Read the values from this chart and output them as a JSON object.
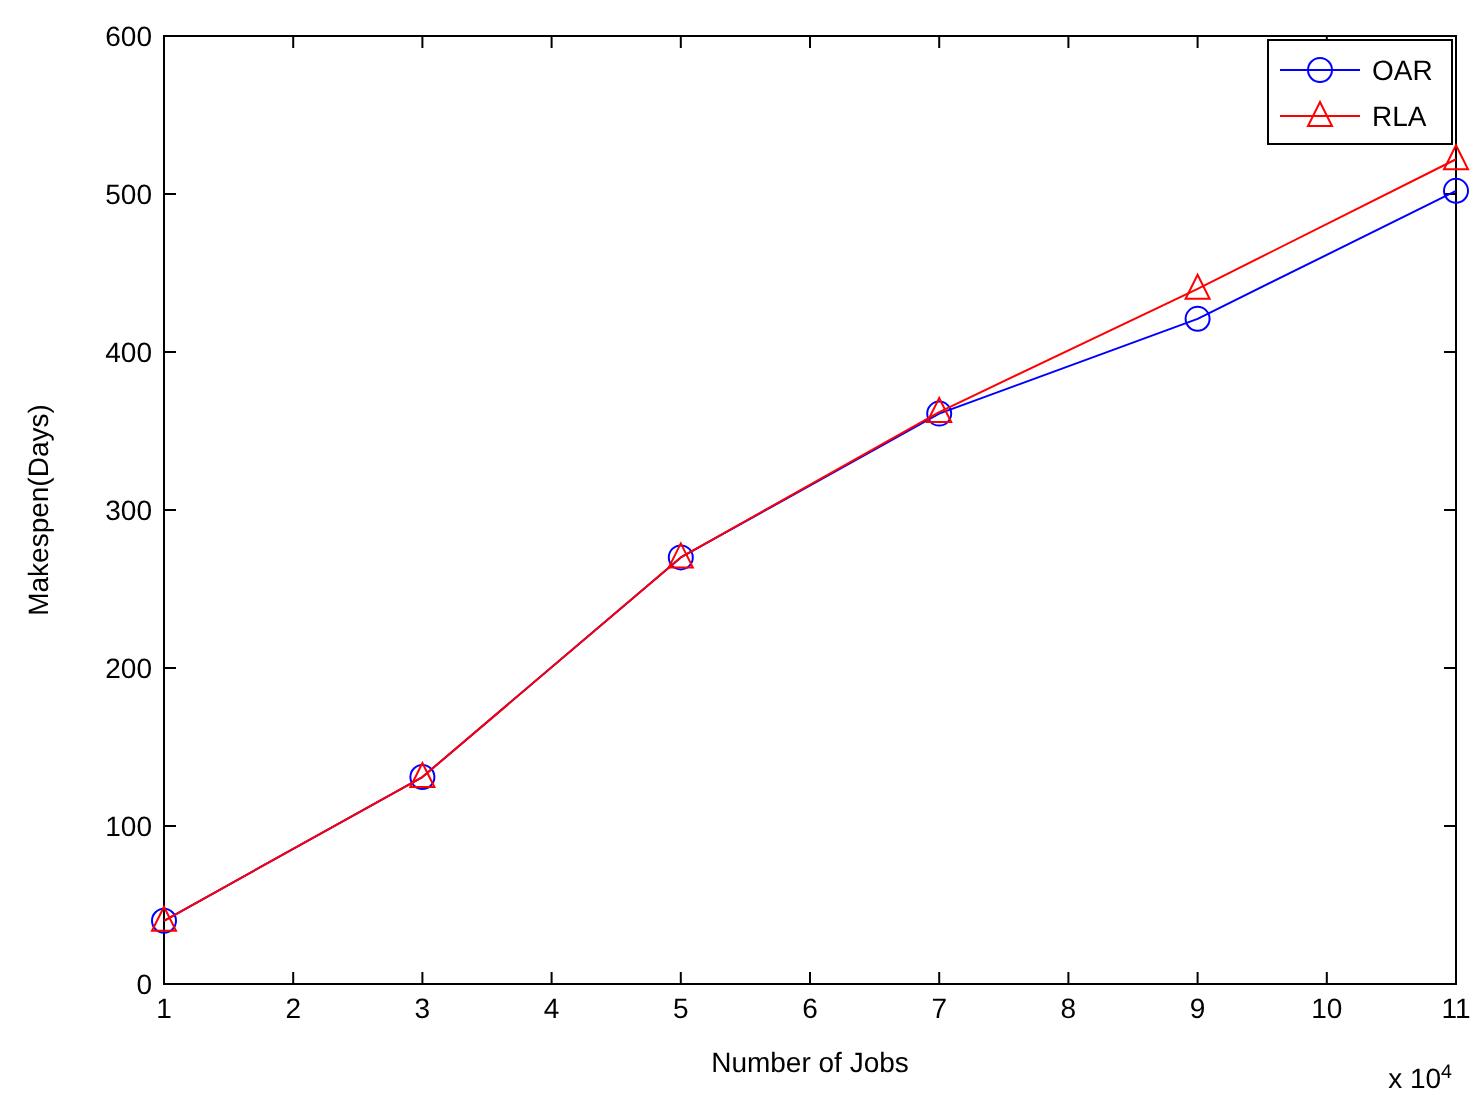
{
  "chart_data": {
    "type": "line",
    "xlabel": "Number of Jobs",
    "ylabel": "Makespen(Days)",
    "x": [
      1,
      3,
      5,
      7,
      9,
      11
    ],
    "series": [
      {
        "name": "OAR",
        "color": "#0000ff",
        "marker": "circle",
        "values": [
          40,
          131,
          270,
          361,
          421,
          502
        ]
      },
      {
        "name": "RLA",
        "color": "#ff0000",
        "marker": "triangle",
        "values": [
          40,
          131,
          270,
          362,
          440,
          522
        ]
      }
    ],
    "xlim": [
      1,
      11
    ],
    "xticks": [
      1,
      2,
      3,
      4,
      5,
      6,
      7,
      8,
      9,
      10,
      11
    ],
    "ylim": [
      0,
      600
    ],
    "yticks": [
      0,
      100,
      200,
      300,
      400,
      500,
      600
    ],
    "annotations": [
      "x 10$^{4}$"
    ],
    "legend": "top right",
    "grid": false,
    "line_style": "solid"
  }
}
